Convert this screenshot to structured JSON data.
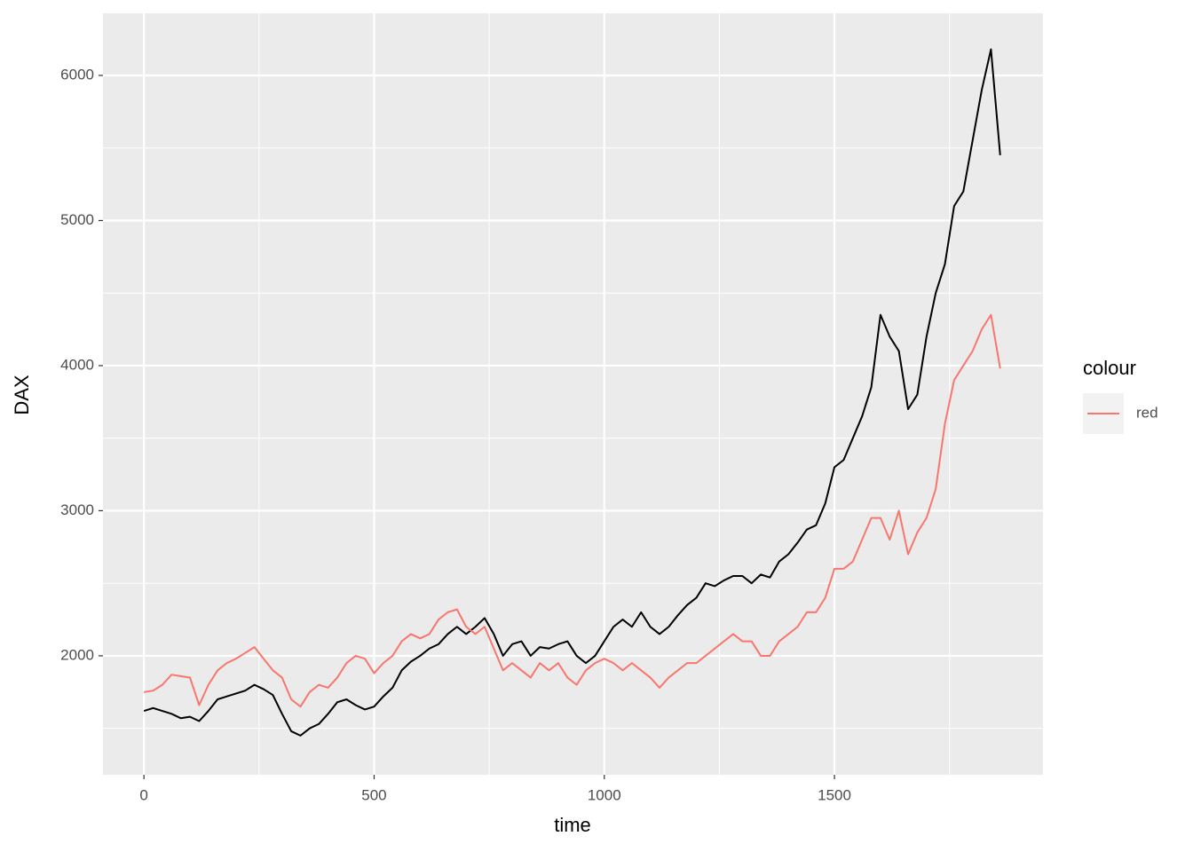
{
  "chart_data": {
    "type": "line",
    "x_label": "time",
    "y_label": "DAX",
    "legend_title": "colour",
    "x": [
      0,
      20,
      40,
      60,
      80,
      100,
      120,
      140,
      160,
      180,
      200,
      220,
      240,
      260,
      280,
      300,
      320,
      340,
      360,
      380,
      400,
      420,
      440,
      460,
      480,
      500,
      520,
      540,
      560,
      580,
      600,
      620,
      640,
      660,
      680,
      700,
      720,
      740,
      760,
      780,
      800,
      820,
      840,
      860,
      880,
      900,
      920,
      940,
      960,
      980,
      1000,
      1020,
      1040,
      1060,
      1080,
      1100,
      1120,
      1140,
      1160,
      1180,
      1200,
      1220,
      1240,
      1260,
      1280,
      1300,
      1320,
      1340,
      1360,
      1380,
      1400,
      1420,
      1440,
      1460,
      1480,
      1500,
      1520,
      1540,
      1560,
      1580,
      1600,
      1620,
      1640,
      1660,
      1680,
      1700,
      1720,
      1740,
      1760,
      1780,
      1800,
      1820,
      1840,
      1860
    ],
    "series": [
      {
        "color": "#000000",
        "values": [
          1620,
          1640,
          1620,
          1600,
          1570,
          1580,
          1550,
          1620,
          1700,
          1720,
          1740,
          1760,
          1800,
          1770,
          1730,
          1600,
          1480,
          1450,
          1500,
          1530,
          1600,
          1680,
          1700,
          1660,
          1630,
          1650,
          1720,
          1780,
          1900,
          1960,
          2000,
          2050,
          2080,
          2150,
          2200,
          2150,
          2200,
          2260,
          2150,
          2000,
          2080,
          2100,
          2000,
          2060,
          2050,
          2080,
          2100,
          2000,
          1950,
          2000,
          2100,
          2200,
          2250,
          2200,
          2300,
          2200,
          2150,
          2200,
          2280,
          2350,
          2400,
          2500,
          2480,
          2520,
          2550,
          2550,
          2500,
          2560,
          2540,
          2650,
          2700,
          2780,
          2870,
          2900,
          3050,
          3300,
          3350,
          3500,
          3650,
          3850,
          4350,
          4200,
          4100,
          3700,
          3800,
          4200,
          4500,
          4700,
          5100,
          5200,
          5550,
          5900,
          6180,
          5450
        ]
      },
      {
        "name": "red",
        "color": "#f8766d",
        "values": [
          1750,
          1760,
          1800,
          1870,
          1860,
          1850,
          1660,
          1800,
          1900,
          1950,
          1980,
          2020,
          2060,
          1980,
          1900,
          1850,
          1700,
          1650,
          1750,
          1800,
          1780,
          1850,
          1950,
          2000,
          1980,
          1880,
          1950,
          2000,
          2100,
          2150,
          2120,
          2150,
          2250,
          2300,
          2320,
          2200,
          2150,
          2200,
          2050,
          1900,
          1950,
          1900,
          1850,
          1950,
          1900,
          1950,
          1850,
          1800,
          1900,
          1950,
          1980,
          1950,
          1900,
          1950,
          1900,
          1850,
          1780,
          1850,
          1900,
          1950,
          1950,
          2000,
          2050,
          2100,
          2150,
          2100,
          2100,
          2000,
          2000,
          2100,
          2150,
          2200,
          2300,
          2300,
          2400,
          2600,
          2600,
          2650,
          2800,
          2950,
          2950,
          2800,
          3000,
          2700,
          2850,
          2950,
          3150,
          3600,
          3900,
          4000,
          4100,
          4250,
          4350,
          3980
        ]
      }
    ],
    "xlim": [
      -89,
      1953
    ],
    "ylim": [
      1180,
      6428
    ],
    "xticks": [
      0,
      500,
      1000,
      1500
    ],
    "yticks": [
      2000,
      3000,
      4000,
      5000,
      6000
    ],
    "grid": true
  }
}
